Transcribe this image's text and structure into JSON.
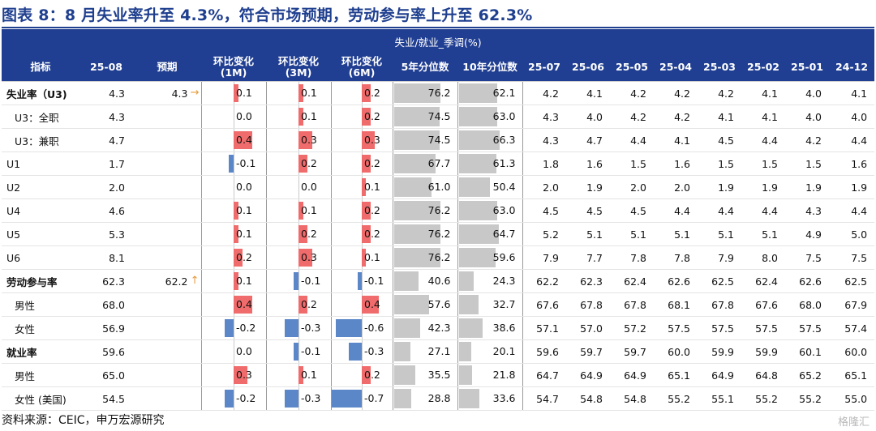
{
  "title": "图表 8：8 月失业率升至 4.3%，符合市场预期，劳动参与率上升至 62.3%",
  "table": {
    "super_header": "失业/就业_季调(%)",
    "columns": {
      "indicator": "指标",
      "current": "25-08",
      "forecast": "预期",
      "mom1": "环比变化\n(1M)",
      "mom3": "环比变化\n(3M)",
      "mom6": "环比变化\n(6M)",
      "pct5": "5年分位数",
      "pct10": "10年分位数",
      "history": [
        "25-07",
        "25-06",
        "25-05",
        "25-04",
        "25-03",
        "25-02",
        "25-01",
        "24-12"
      ]
    },
    "rows": [
      {
        "label": "失业率（U3)",
        "style": "main",
        "group_start": true,
        "current": "4.3",
        "forecast": "4.3",
        "arrow": "→",
        "mom1": "0.1",
        "mom3": "0.1",
        "mom6": "0.2",
        "pct5": "76.2",
        "pct10": "62.1",
        "history": [
          "4.2",
          "4.1",
          "4.2",
          "4.2",
          "4.2",
          "4.1",
          "4.0",
          "4.1"
        ]
      },
      {
        "label": "U3：全职",
        "style": "sub",
        "current": "4.3",
        "forecast": "",
        "arrow": "",
        "mom1": "0.0",
        "mom3": "0.1",
        "mom6": "0.2",
        "pct5": "74.5",
        "pct10": "63.0",
        "history": [
          "4.3",
          "4.0",
          "4.2",
          "4.2",
          "4.1",
          "4.1",
          "4.0",
          "4.0"
        ]
      },
      {
        "label": "U3：兼职",
        "style": "sub",
        "current": "4.7",
        "forecast": "",
        "arrow": "",
        "mom1": "0.4",
        "mom3": "0.3",
        "mom6": "0.3",
        "pct5": "74.5",
        "pct10": "66.3",
        "history": [
          "4.3",
          "4.7",
          "4.4",
          "4.1",
          "4.5",
          "4.4",
          "4.2",
          "4.4"
        ]
      },
      {
        "label": "U1",
        "style": "plain",
        "current": "1.7",
        "forecast": "",
        "arrow": "",
        "mom1": "-0.1",
        "mom3": "0.2",
        "mom6": "0.2",
        "pct5": "67.7",
        "pct10": "61.3",
        "history": [
          "1.8",
          "1.6",
          "1.5",
          "1.6",
          "1.5",
          "1.5",
          "1.5",
          "1.6"
        ]
      },
      {
        "label": "U2",
        "style": "plain",
        "current": "2.0",
        "forecast": "",
        "arrow": "",
        "mom1": "0.0",
        "mom3": "0.0",
        "mom6": "0.1",
        "pct5": "61.0",
        "pct10": "50.4",
        "history": [
          "2.0",
          "1.9",
          "2.0",
          "2.0",
          "1.9",
          "1.9",
          "1.9",
          "1.9"
        ]
      },
      {
        "label": "U4",
        "style": "plain",
        "current": "4.6",
        "forecast": "",
        "arrow": "",
        "mom1": "0.1",
        "mom3": "0.1",
        "mom6": "0.2",
        "pct5": "76.2",
        "pct10": "63.0",
        "history": [
          "4.5",
          "4.5",
          "4.5",
          "4.4",
          "4.4",
          "4.4",
          "4.3",
          "4.4"
        ]
      },
      {
        "label": "U5",
        "style": "plain",
        "current": "5.3",
        "forecast": "",
        "arrow": "",
        "mom1": "0.1",
        "mom3": "0.2",
        "mom6": "0.2",
        "pct5": "76.2",
        "pct10": "64.7",
        "history": [
          "5.2",
          "5.1",
          "5.1",
          "5.1",
          "5.1",
          "5.1",
          "4.9",
          "5.0"
        ]
      },
      {
        "label": "U6",
        "style": "plain",
        "current": "8.1",
        "forecast": "",
        "arrow": "",
        "mom1": "0.2",
        "mom3": "0.3",
        "mom6": "0.1",
        "pct5": "76.2",
        "pct10": "59.6",
        "history": [
          "7.9",
          "7.7",
          "7.8",
          "7.8",
          "7.9",
          "8.0",
          "7.5",
          "7.5"
        ]
      },
      {
        "label": "劳动参与率",
        "style": "main",
        "group_start": true,
        "current": "62.3",
        "forecast": "62.2",
        "arrow": "↑",
        "mom1": "0.1",
        "mom3": "-0.1",
        "mom6": "-0.1",
        "pct5": "40.6",
        "pct10": "24.3",
        "history": [
          "62.2",
          "62.3",
          "62.4",
          "62.6",
          "62.5",
          "62.4",
          "62.6",
          "62.5"
        ]
      },
      {
        "label": "男性",
        "style": "sub",
        "current": "68.0",
        "forecast": "",
        "arrow": "",
        "mom1": "0.4",
        "mom3": "0.2",
        "mom6": "0.4",
        "pct5": "57.6",
        "pct10": "32.7",
        "history": [
          "67.6",
          "67.8",
          "67.8",
          "68.1",
          "67.8",
          "67.6",
          "68.0",
          "67.9"
        ]
      },
      {
        "label": "女性",
        "style": "sub",
        "current": "56.9",
        "forecast": "",
        "arrow": "",
        "mom1": "-0.2",
        "mom3": "-0.3",
        "mom6": "-0.6",
        "pct5": "42.3",
        "pct10": "38.6",
        "history": [
          "57.1",
          "57.0",
          "57.2",
          "57.5",
          "57.5",
          "57.5",
          "57.5",
          "57.4"
        ]
      },
      {
        "label": "就业率",
        "style": "main",
        "group_start": true,
        "current": "59.6",
        "forecast": "",
        "arrow": "",
        "mom1": "0.0",
        "mom3": "-0.1",
        "mom6": "-0.3",
        "pct5": "27.1",
        "pct10": "20.1",
        "history": [
          "59.6",
          "59.7",
          "59.7",
          "60.0",
          "59.9",
          "59.9",
          "60.1",
          "60.0"
        ]
      },
      {
        "label": "男性",
        "style": "sub",
        "current": "65.0",
        "forecast": "",
        "arrow": "",
        "mom1": "0.3",
        "mom3": "0.1",
        "mom6": "0.2",
        "pct5": "35.5",
        "pct10": "21.8",
        "history": [
          "64.7",
          "64.9",
          "64.9",
          "65.1",
          "64.9",
          "64.8",
          "65.2",
          "65.1"
        ]
      },
      {
        "label": "女性 (美国)",
        "style": "sub",
        "current": "54.5",
        "forecast": "",
        "arrow": "",
        "mom1": "-0.2",
        "mom3": "-0.3",
        "mom6": "-0.7",
        "pct5": "28.8",
        "pct10": "33.6",
        "history": [
          "54.7",
          "54.8",
          "54.8",
          "55.2",
          "55.1",
          "55.2",
          "55.2",
          "55.0"
        ]
      }
    ]
  },
  "colors": {
    "header_bg": "#213f92",
    "positive_bar": "#f06b6b",
    "negative_bar": "#5b86c8",
    "percentile_bar": "#c8c8c8",
    "arrow": "#e79b3a"
  },
  "footer": {
    "source": "资料来源：CEIC，申万宏源研究",
    "watermark": "格隆汇"
  }
}
